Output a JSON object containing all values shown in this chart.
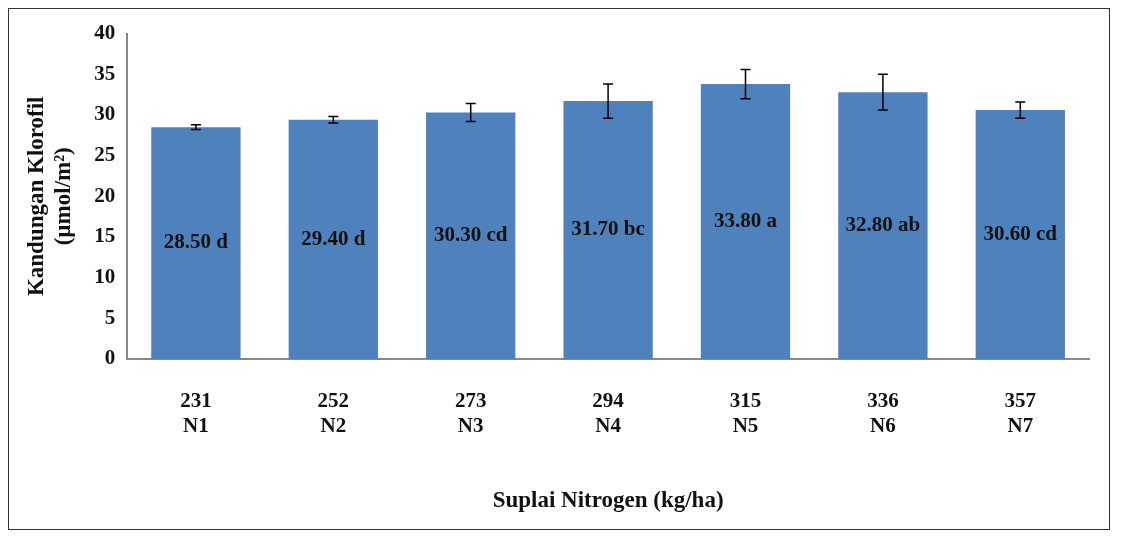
{
  "chart_data": {
    "type": "bar",
    "xlabel": "Suplai Nitrogen (kg/ha)",
    "ylabel": "Kandungan Klorofil\n(µmol/m²)",
    "categories": [
      "231\nN1",
      "252\nN2",
      "273\nN3",
      "294\nN4",
      "315\nN5",
      "336\nN6",
      "357\nN7"
    ],
    "values": [
      28.5,
      29.4,
      30.3,
      31.7,
      33.8,
      32.8,
      30.6
    ],
    "errors": [
      0.3,
      0.4,
      1.1,
      2.1,
      1.8,
      2.2,
      1.0
    ],
    "value_labels": [
      "28.50 d",
      "29.40 d",
      "30.30 cd",
      "31.70 bc",
      "33.80 a",
      "32.80 ab",
      "30.60 cd"
    ],
    "color": "#4f81bd",
    "ylim": [
      0,
      40
    ],
    "yticks": [
      0,
      5,
      10,
      15,
      20,
      25,
      30,
      35,
      40
    ],
    "grid": false,
    "legend": false
  }
}
